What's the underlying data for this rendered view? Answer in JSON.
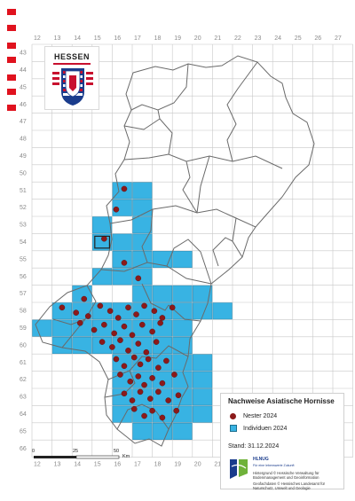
{
  "map": {
    "title": "Nachweise Asiatische Hornisse",
    "state_label": "HESSEN",
    "col_labels": [
      "12",
      "13",
      "14",
      "15",
      "16",
      "17",
      "18",
      "19",
      "20",
      "21",
      "22",
      "23",
      "24",
      "25",
      "26",
      "27"
    ],
    "row_labels": [
      "43",
      "44",
      "45",
      "46",
      "47",
      "48",
      "49",
      "50",
      "51",
      "52",
      "53",
      "54",
      "55",
      "56",
      "57",
      "58",
      "59",
      "60",
      "61",
      "62",
      "63",
      "64",
      "65",
      "66"
    ]
  },
  "legend": {
    "nests_label": "Nester 2024",
    "individuals_label": "Individuen 2024",
    "stand": "Stand: 31.12.2024"
  },
  "scale": {
    "labels": [
      "0",
      "25",
      "50"
    ],
    "unit": "Km"
  },
  "credits": {
    "logo_text": "HLNUG",
    "logo_sub": "Für eine lebenswerte Zukunft",
    "line1": "Hintergrund © Hessische Verwaltung für Bodenmanagement und Geoinformation",
    "line2": "Geofachdaten © Hessisches Landesamt für Naturschutz, Umwelt und Geologie"
  },
  "colors": {
    "individuals": "#38b3e3",
    "nests": "#8b1a1a",
    "grid": "#c8c8c8",
    "border": "#6a6a6a",
    "marker": "#e0121e"
  },
  "individual_cells": [
    [
      16,
      51
    ],
    [
      17,
      51
    ],
    [
      16,
      52
    ],
    [
      17,
      52
    ],
    [
      15,
      53
    ],
    [
      17,
      53
    ],
    [
      16,
      54
    ],
    [
      17,
      54
    ],
    [
      15,
      54
    ],
    [
      16,
      55
    ],
    [
      17,
      55
    ],
    [
      18,
      55
    ],
    [
      19,
      55
    ],
    [
      15,
      56
    ],
    [
      16,
      56
    ],
    [
      17,
      56
    ],
    [
      14,
      57
    ],
    [
      17,
      57
    ],
    [
      18,
      57
    ],
    [
      19,
      57
    ],
    [
      20,
      57
    ],
    [
      13,
      58
    ],
    [
      14,
      58
    ],
    [
      15,
      58
    ],
    [
      16,
      58
    ],
    [
      17,
      58
    ],
    [
      18,
      58
    ],
    [
      19,
      58
    ],
    [
      20,
      58
    ],
    [
      21,
      58
    ],
    [
      12,
      59
    ],
    [
      13,
      59
    ],
    [
      14,
      59
    ],
    [
      15,
      59
    ],
    [
      16,
      59
    ],
    [
      17,
      59
    ],
    [
      18,
      59
    ],
    [
      19,
      59
    ],
    [
      13,
      60
    ],
    [
      14,
      60
    ],
    [
      15,
      60
    ],
    [
      16,
      60
    ],
    [
      17,
      60
    ],
    [
      18,
      60
    ],
    [
      19,
      60
    ],
    [
      16,
      61
    ],
    [
      17,
      61
    ],
    [
      18,
      61
    ],
    [
      19,
      61
    ],
    [
      20,
      61
    ],
    [
      16,
      62
    ],
    [
      17,
      62
    ],
    [
      18,
      62
    ],
    [
      19,
      62
    ],
    [
      20,
      62
    ],
    [
      16,
      63
    ],
    [
      17,
      63
    ],
    [
      18,
      63
    ],
    [
      19,
      63
    ],
    [
      20,
      63
    ],
    [
      16,
      64
    ],
    [
      17,
      64
    ],
    [
      18,
      64
    ],
    [
      19,
      64
    ],
    [
      20,
      64
    ],
    [
      17,
      65
    ],
    [
      18,
      65
    ],
    [
      19,
      65
    ]
  ],
  "nests": [
    [
      16.6,
      51.4
    ],
    [
      16.2,
      52.6
    ],
    [
      15.6,
      54.3
    ],
    [
      16.6,
      55.7
    ],
    [
      17.3,
      56.6
    ],
    [
      14.6,
      57.8
    ],
    [
      13.5,
      58.3
    ],
    [
      14.2,
      58.6
    ],
    [
      14.8,
      58.8
    ],
    [
      15.4,
      58.2
    ],
    [
      15.9,
      58.5
    ],
    [
      16.3,
      58.9
    ],
    [
      16.8,
      58.3
    ],
    [
      17.2,
      58.7
    ],
    [
      17.6,
      58.2
    ],
    [
      18.1,
      58.5
    ],
    [
      18.5,
      58.9
    ],
    [
      19.0,
      58.3
    ],
    [
      14.4,
      59.2
    ],
    [
      15.1,
      59.6
    ],
    [
      15.6,
      59.3
    ],
    [
      16.1,
      59.8
    ],
    [
      16.6,
      59.4
    ],
    [
      17.0,
      59.9
    ],
    [
      17.5,
      59.3
    ],
    [
      18.0,
      59.7
    ],
    [
      18.4,
      59.2
    ],
    [
      15.5,
      60.3
    ],
    [
      16.0,
      60.6
    ],
    [
      16.4,
      60.2
    ],
    [
      16.8,
      60.8
    ],
    [
      17.3,
      60.4
    ],
    [
      17.7,
      60.9
    ],
    [
      18.2,
      60.3
    ],
    [
      16.2,
      61.3
    ],
    [
      16.6,
      61.7
    ],
    [
      17.1,
      61.2
    ],
    [
      17.4,
      61.6
    ],
    [
      17.8,
      61.3
    ],
    [
      18.3,
      61.8
    ],
    [
      18.7,
      61.4
    ],
    [
      16.4,
      62.2
    ],
    [
      16.9,
      62.6
    ],
    [
      17.3,
      62.3
    ],
    [
      17.6,
      62.8
    ],
    [
      18.0,
      62.4
    ],
    [
      18.5,
      62.7
    ],
    [
      19.1,
      62.2
    ],
    [
      16.6,
      63.3
    ],
    [
      17.0,
      63.7
    ],
    [
      17.4,
      63.2
    ],
    [
      17.9,
      63.6
    ],
    [
      18.3,
      63.2
    ],
    [
      18.8,
      63.7
    ],
    [
      19.3,
      63.4
    ],
    [
      17.1,
      64.2
    ],
    [
      17.6,
      64.6
    ],
    [
      18.0,
      64.3
    ],
    [
      18.5,
      64.7
    ],
    [
      19.2,
      64.3
    ]
  ],
  "nest_marker_cells": [
    [
      15,
      54
    ]
  ]
}
